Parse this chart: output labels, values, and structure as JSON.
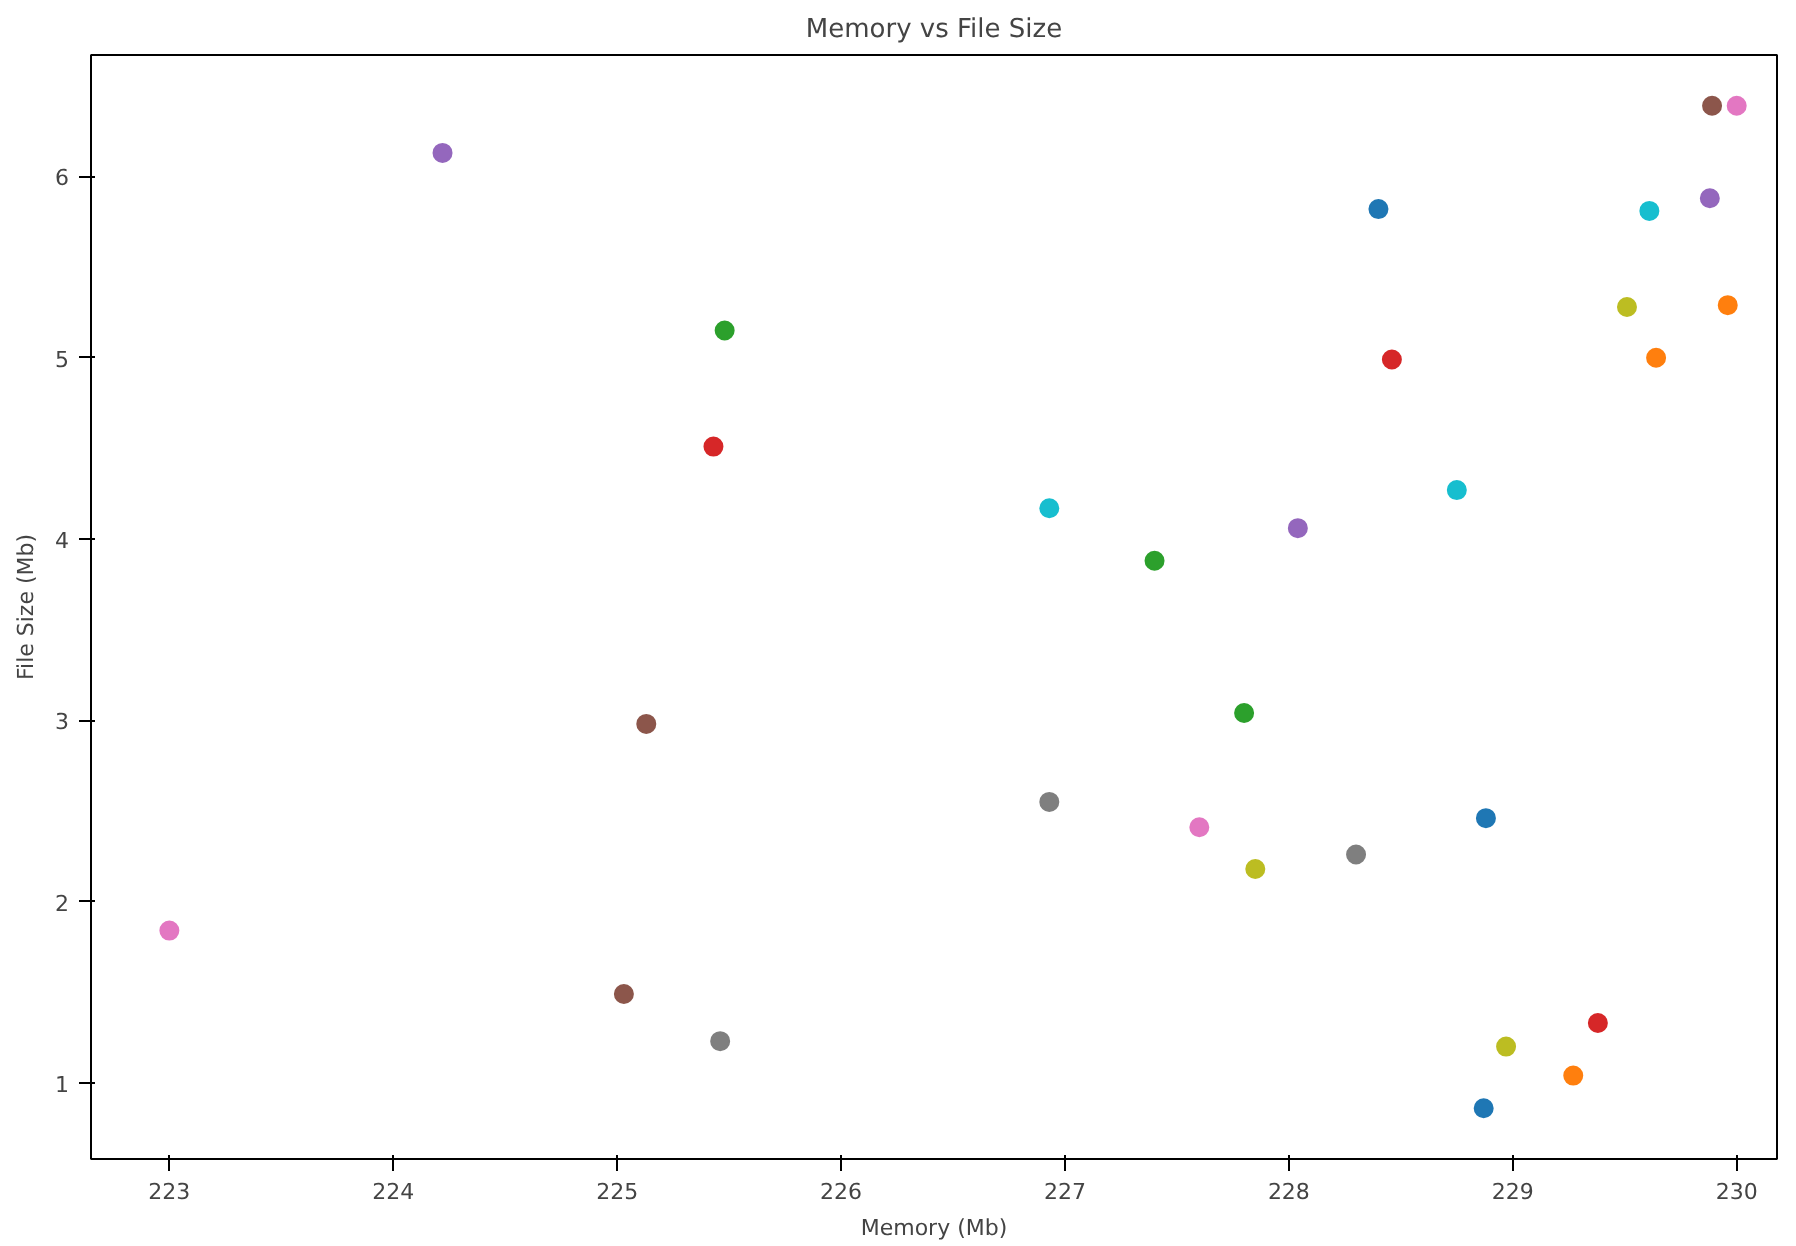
{
  "chart_data": {
    "type": "scatter",
    "title": "Memory vs File Size",
    "xlabel": "Memory (Mb)",
    "ylabel": "File Size (Mb)",
    "x": [
      223.0,
      224.22,
      225.03,
      225.13,
      225.43,
      225.48,
      225.46,
      226.93,
      226.93,
      227.4,
      227.6,
      227.8,
      227.85,
      228.04,
      228.3,
      228.4,
      228.46,
      228.75,
      228.88,
      228.87,
      228.97,
      229.27,
      229.38,
      229.51,
      229.61,
      229.64,
      229.88,
      229.89,
      229.96,
      230.0
    ],
    "values": [
      1.84,
      6.13,
      1.49,
      2.98,
      4.51,
      5.15,
      1.23,
      4.17,
      2.55,
      3.88,
      2.41,
      3.04,
      2.18,
      4.06,
      2.26,
      5.82,
      4.99,
      4.27,
      2.46,
      0.86,
      1.2,
      1.04,
      1.33,
      5.28,
      5.81,
      5.0,
      5.88,
      6.39,
      5.29,
      6.39
    ],
    "colors": [
      "#e377c2",
      "#9467bd",
      "#8c564b",
      "#8c564b",
      "#d62728",
      "#2ca02c",
      "#7f7f7f",
      "#17becf",
      "#7f7f7f",
      "#2ca02c",
      "#e377c2",
      "#2ca02c",
      "#bcbd22",
      "#9467bd",
      "#7f7f7f",
      "#1f77b4",
      "#d62728",
      "#17becf",
      "#1f77b4",
      "#1f77b4",
      "#bcbd22",
      "#ff7f0e",
      "#d62728",
      "#bcbd22",
      "#17becf",
      "#ff7f0e",
      "#9467bd",
      "#8c564b",
      "#ff7f0e",
      "#e377c2"
    ],
    "xlim": [
      222.65,
      230.18
    ],
    "ylim": [
      0.58,
      6.67
    ],
    "xticks": [
      223,
      224,
      225,
      226,
      227,
      228,
      229,
      230
    ],
    "yticks": [
      1,
      2,
      3,
      4,
      5,
      6
    ],
    "marker": "circle",
    "grid": false
  }
}
